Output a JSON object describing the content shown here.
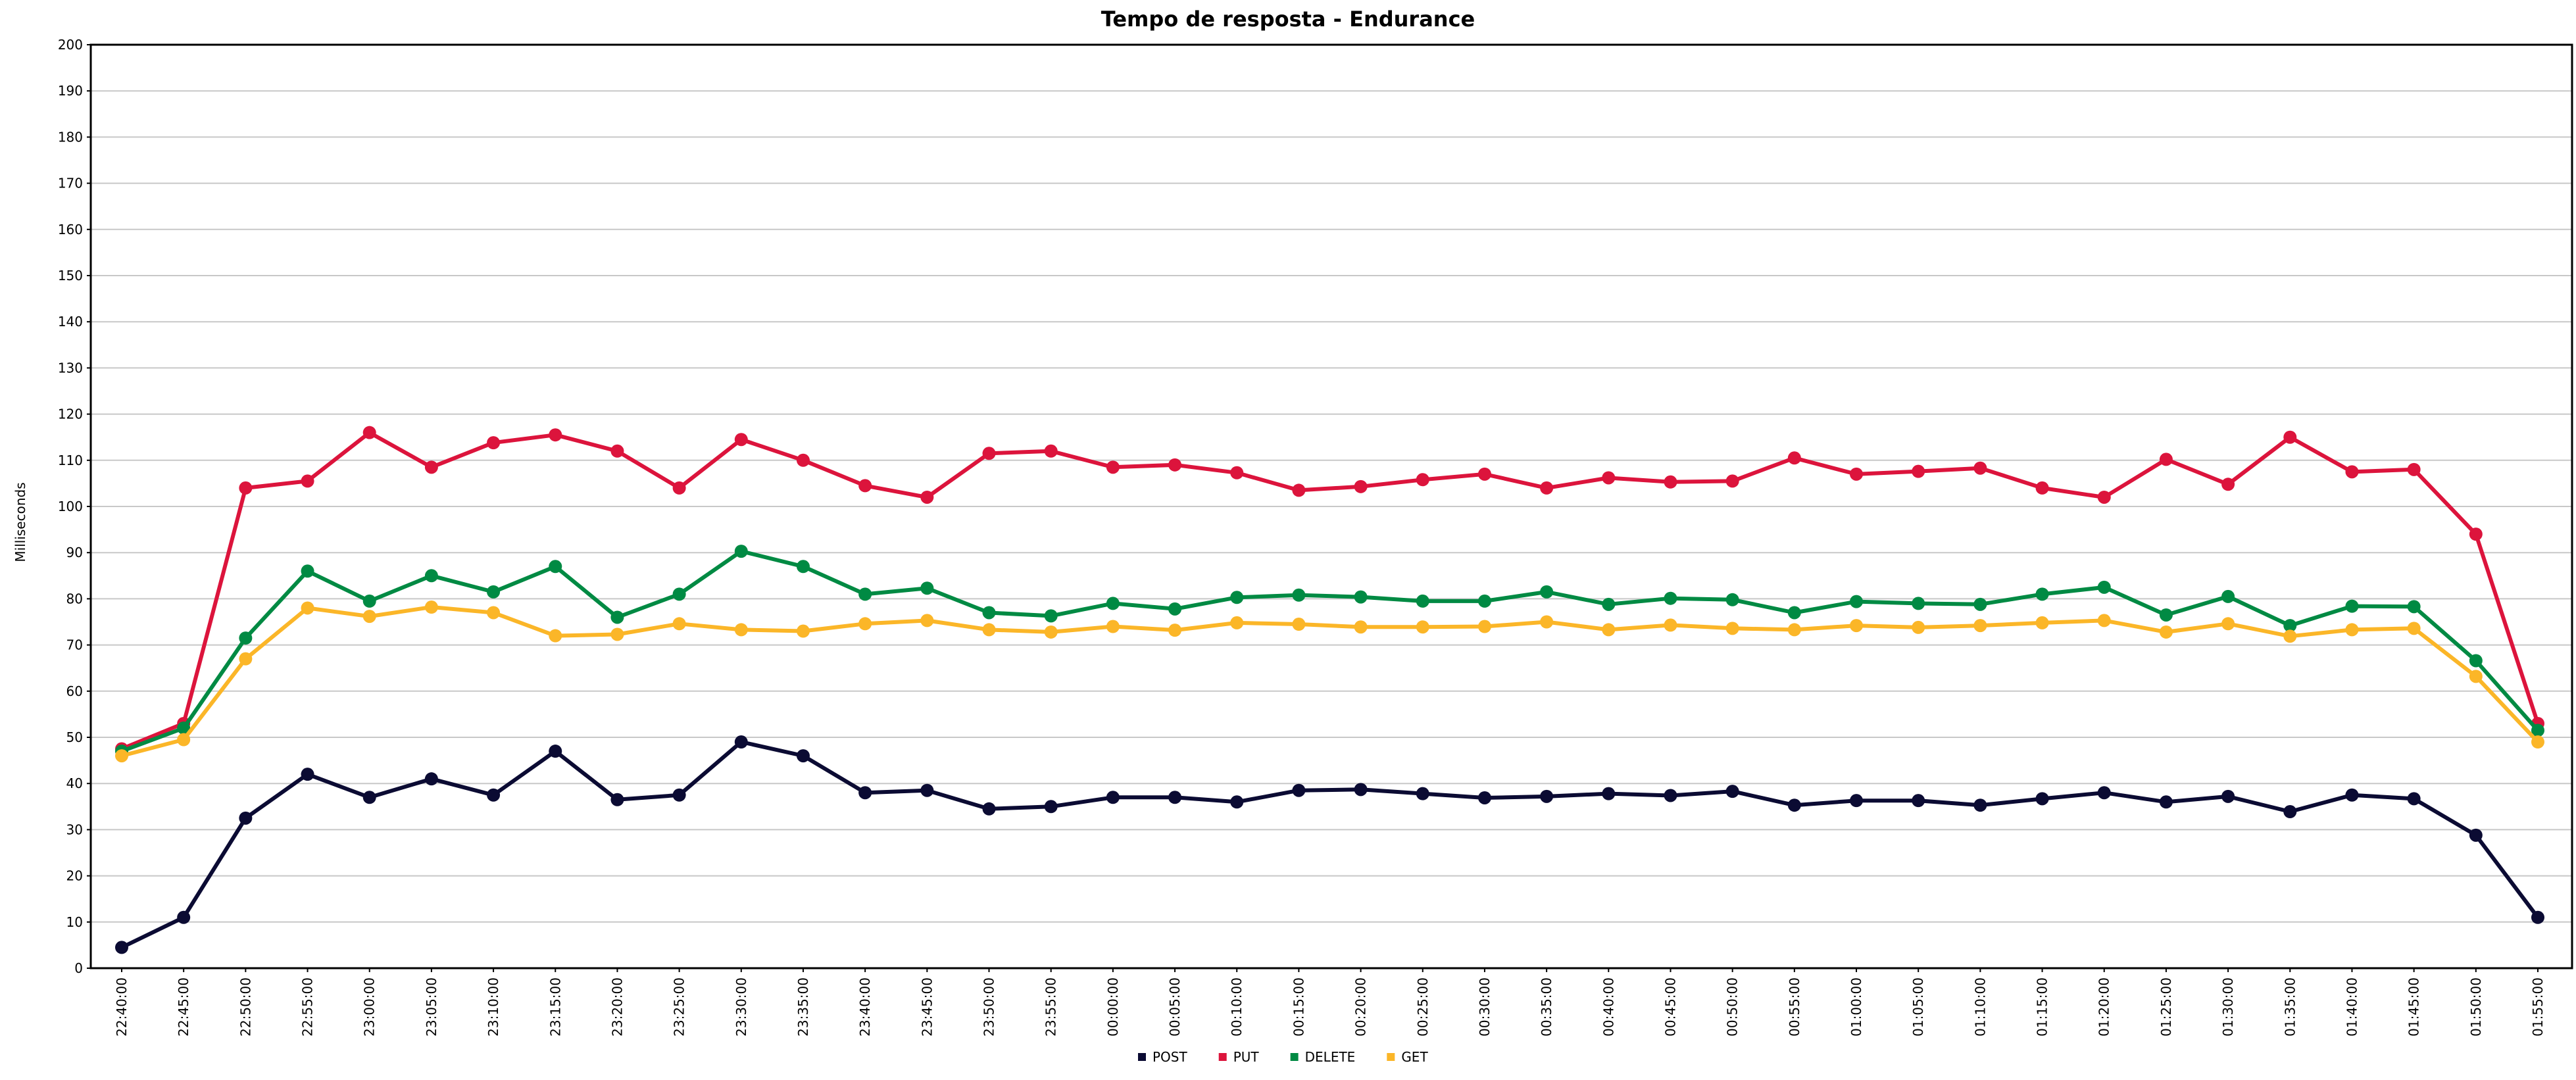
{
  "chart_data": {
    "type": "line",
    "title": "Tempo de resposta - Endurance",
    "xlabel": "",
    "ylabel": "Milliseconds",
    "ylim": [
      0,
      200
    ],
    "ytick_step": 10,
    "grid": true,
    "legend_placement": "bottom-center",
    "x": [
      "22:40:00",
      "22:45:00",
      "22:50:00",
      "22:55:00",
      "23:00:00",
      "23:05:00",
      "23:10:00",
      "23:15:00",
      "23:20:00",
      "23:25:00",
      "23:30:00",
      "23:35:00",
      "23:40:00",
      "23:45:00",
      "23:50:00",
      "23:55:00",
      "00:00:00",
      "00:05:00",
      "00:10:00",
      "00:15:00",
      "00:20:00",
      "00:25:00",
      "00:30:00",
      "00:35:00",
      "00:40:00",
      "00:45:00",
      "00:50:00",
      "00:55:00",
      "01:00:00",
      "01:05:00",
      "01:10:00",
      "01:15:00",
      "01:20:00",
      "01:25:00",
      "01:30:00",
      "01:35:00",
      "01:40:00",
      "01:45:00",
      "01:50:00",
      "01:55:00"
    ],
    "series": [
      {
        "name": "POST",
        "color": "#0b0b33",
        "values": [
          4.5,
          11,
          32.5,
          42,
          37,
          41,
          37.5,
          47,
          36.5,
          37.5,
          49,
          46,
          38,
          38.5,
          34.5,
          35,
          37,
          37,
          36,
          38.5,
          38.7,
          37.8,
          36.9,
          37.2,
          37.8,
          37.4,
          38.3,
          35.3,
          36.3,
          36.3,
          35.3,
          36.7,
          38,
          36,
          37.2,
          33.9,
          37.5,
          36.7,
          28.8,
          11
        ]
      },
      {
        "name": "PUT",
        "color": "#dc143c",
        "values": [
          47.5,
          53,
          104,
          105.5,
          116,
          108.5,
          113.8,
          115.5,
          112,
          104,
          114.5,
          110,
          104.5,
          102,
          111.5,
          112,
          108.5,
          109,
          107.3,
          103.5,
          104.3,
          105.8,
          107,
          104,
          106.2,
          105.3,
          105.5,
          110.5,
          107,
          107.6,
          108.3,
          104,
          102,
          110.2,
          104.8,
          115,
          107.5,
          108,
          94,
          53
        ]
      },
      {
        "name": "DELETE",
        "color": "#008a43",
        "values": [
          47,
          52,
          71.5,
          86,
          79.5,
          85,
          81.5,
          87,
          76,
          81,
          90.3,
          87,
          81,
          82.3,
          77,
          76.3,
          79,
          77.8,
          80.3,
          80.8,
          80.4,
          79.5,
          79.5,
          81.5,
          78.8,
          80.1,
          79.8,
          77,
          79.4,
          79,
          78.8,
          81,
          82.5,
          76.5,
          80.5,
          74.2,
          78.4,
          78.3,
          66.6,
          51.5
        ]
      },
      {
        "name": "GET",
        "color": "#fbb628",
        "values": [
          46,
          49.5,
          67,
          78,
          76.2,
          78.2,
          77,
          72,
          72.3,
          74.6,
          73.3,
          73,
          74.6,
          75.3,
          73.3,
          72.8,
          74,
          73.2,
          74.8,
          74.5,
          73.9,
          73.9,
          74,
          75,
          73.3,
          74.3,
          73.6,
          73.3,
          74.2,
          73.8,
          74.2,
          74.8,
          75.3,
          72.8,
          74.6,
          71.9,
          73.3,
          73.6,
          63.2,
          49
        ]
      }
    ]
  }
}
